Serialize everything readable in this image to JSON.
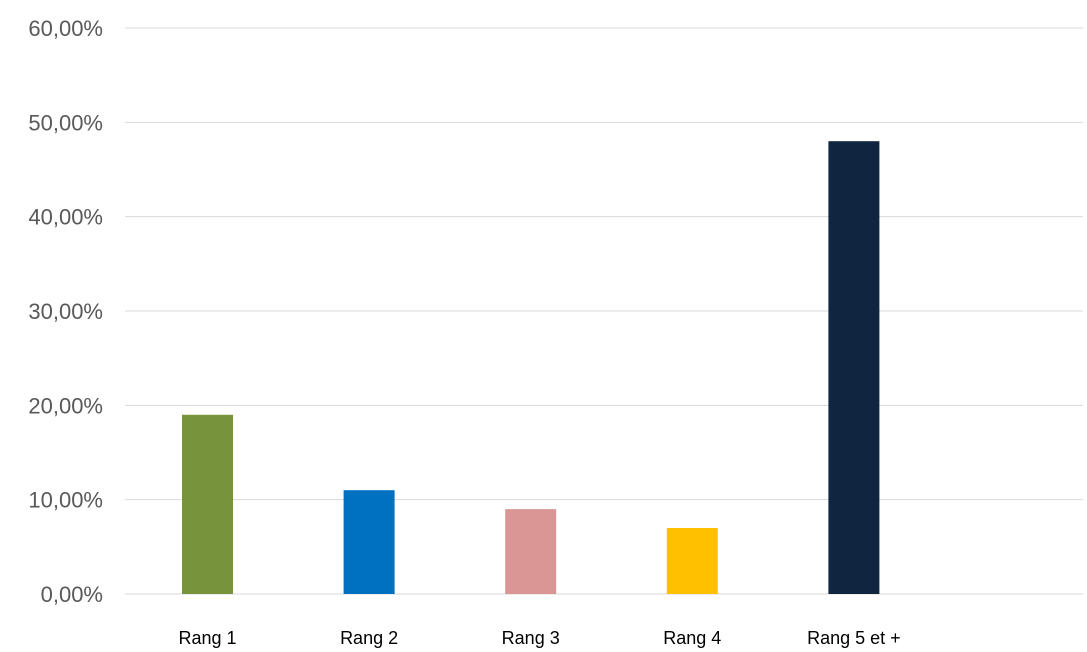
{
  "chart_data": {
    "type": "bar",
    "categories": [
      "Rang 1",
      "Rang 2",
      "Rang 3",
      "Rang 4",
      "Rang 5 et +"
    ],
    "values": [
      19,
      11,
      9,
      7,
      48
    ],
    "colors": [
      "#77933c",
      "#0070c0",
      "#d99694",
      "#ffc000",
      "#10253f"
    ],
    "ylim": [
      0,
      60
    ],
    "yticks": [
      0,
      10,
      20,
      30,
      40,
      50,
      60
    ],
    "ytick_labels": [
      "0,00%",
      "10,00%",
      "20,00%",
      "30,00%",
      "40,00%",
      "50,00%",
      "60,00%"
    ],
    "grid": true,
    "legend": "none"
  }
}
